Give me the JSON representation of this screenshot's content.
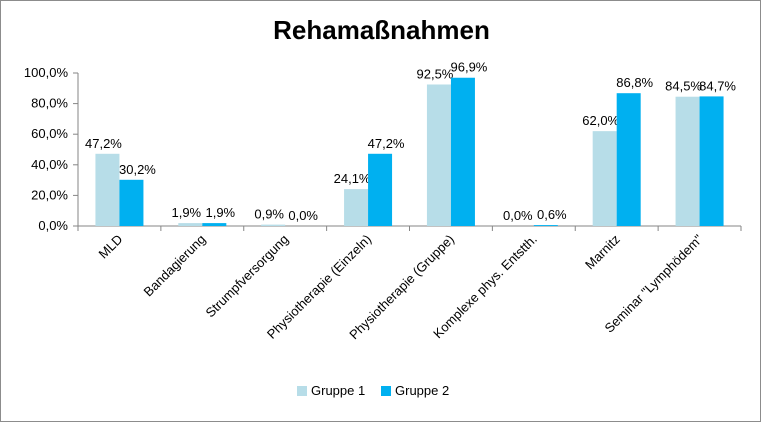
{
  "chart_data": {
    "type": "bar",
    "title": "Rehamaßnahmen",
    "categories": [
      "MLD",
      "Bandagierung",
      "Strumpfversorgung",
      "Physiotherapie (Einzeln)",
      "Physiotherapie (Gruppe)",
      "Komplexe phys. Entstth.",
      "Marnitz",
      "Seminar \"Lymphödem\""
    ],
    "series": [
      {
        "name": "Gruppe 1",
        "color": "#b7dde8",
        "values": [
          47.2,
          1.9,
          0.9,
          24.1,
          92.5,
          0.0,
          62.0,
          84.5
        ],
        "labels": [
          "47,2%",
          "1,9%",
          "0,9%",
          "24,1%",
          "92,5%",
          "0,0%",
          "62,0%",
          "84,5%"
        ]
      },
      {
        "name": "Gruppe 2",
        "color": "#00b0f0",
        "values": [
          30.2,
          1.9,
          0.0,
          47.2,
          96.9,
          0.6,
          86.8,
          84.7
        ],
        "labels": [
          "30,2%",
          "1,9%",
          "0,0%",
          "47,2%",
          "96,9%",
          "0,6%",
          "86,8%",
          "84,7%"
        ]
      }
    ],
    "ylim": [
      0,
      100
    ],
    "yticks": [
      0,
      20,
      40,
      60,
      80,
      100
    ],
    "ytick_labels": [
      "0,0%",
      "20,0%",
      "40,0%",
      "60,0%",
      "80,0%",
      "100,0%"
    ],
    "grid": false,
    "legend_position": "bottom"
  }
}
